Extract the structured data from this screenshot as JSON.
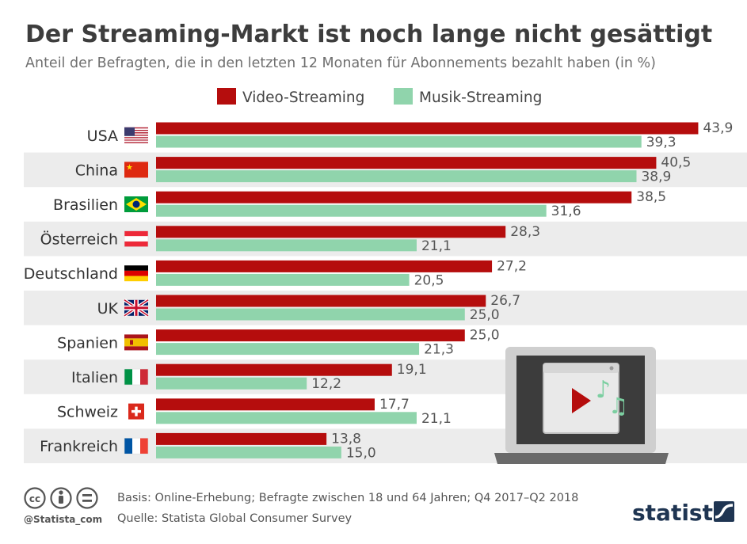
{
  "chart_data": {
    "type": "bar",
    "orientation": "horizontal",
    "title": "Der Streaming-Markt ist noch lange nicht gesättigt",
    "subtitle": "Anteil der Befragten, die in den letzten 12 Monaten für Abonnements bezahlt haben (in %)",
    "categories": [
      "USA",
      "China",
      "Brasilien",
      "Österreich",
      "Deutschland",
      "UK",
      "Spanien",
      "Italien",
      "Schweiz",
      "Frankreich"
    ],
    "series": [
      {
        "name": "Video-Streaming",
        "color": "#b50d0d",
        "values": [
          43.9,
          40.5,
          38.5,
          28.3,
          27.2,
          26.7,
          25.0,
          19.1,
          17.7,
          13.8
        ],
        "labels": [
          "43,9",
          "40,5",
          "38,5",
          "28,3",
          "27,2",
          "26,7",
          "25,0",
          "19,1",
          "17,7",
          "13,8"
        ]
      },
      {
        "name": "Musik-Streaming",
        "color": "#90d4ac",
        "values": [
          39.3,
          38.9,
          31.6,
          21.1,
          20.5,
          25.0,
          21.3,
          12.2,
          21.1,
          15.0
        ],
        "labels": [
          "39,3",
          "38,9",
          "31,6",
          "21,1",
          "20,5",
          "25,0",
          "21,3",
          "12,2",
          "21,1",
          "15,0"
        ]
      }
    ],
    "xlim": [
      0,
      44
    ],
    "legend_position": "top",
    "grid": false,
    "flags": [
      "us-flag-icon",
      "china-flag-icon",
      "brazil-flag-icon",
      "austria-flag-icon",
      "germany-flag-icon",
      "uk-flag-icon",
      "spain-flag-icon",
      "italy-flag-icon",
      "switzerland-flag-icon",
      "france-flag-icon"
    ],
    "illustration": "laptop-video-music-icon"
  },
  "footer": {
    "basis": "Basis: Online-Erhebung; Befragte zwischen 18 und 64 Jahren; Q4 2017–Q2 2018",
    "source": "Quelle: Statista Global Consumer Survey",
    "handle": "@Statista_com",
    "brand": "statista",
    "license_icon": "creative-commons-icon"
  },
  "colors": {
    "title": "#3d3d3d",
    "text": "#555555",
    "stripe": "#ececec"
  }
}
